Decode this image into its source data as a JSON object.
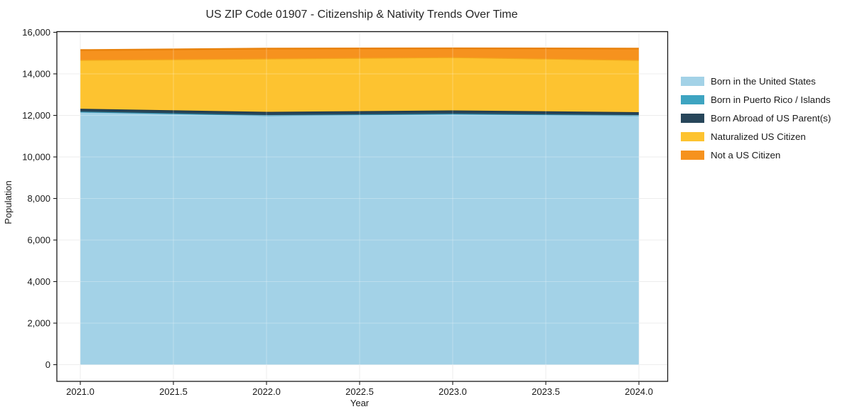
{
  "chart_data": {
    "type": "area",
    "stacked": true,
    "title": "US ZIP Code 01907 - Citizenship & Nativity Trends Over Time",
    "xlabel": "Year",
    "ylabel": "Population",
    "x": [
      2021,
      2022,
      2023,
      2024
    ],
    "series": [
      {
        "name": "Born in the United States",
        "values": [
          12170,
          12000,
          12070,
          12000
        ],
        "color": "#A3D2E7",
        "edge_color": "#8CC3DD"
      },
      {
        "name": "Born in Puerto Rico / Islands",
        "values": [
          15,
          15,
          15,
          15
        ],
        "color": "#3EA4C1",
        "edge_color": "#338FAC"
      },
      {
        "name": "Born Abroad of US Parent(s)",
        "values": [
          135,
          155,
          155,
          140
        ],
        "color": "#27465A",
        "edge_color": "#1B3648"
      },
      {
        "name": "Naturalized US Citizen",
        "values": [
          2350,
          2565,
          2560,
          2510
        ],
        "color": "#FDC330",
        "edge_color": "#F3A71B"
      },
      {
        "name": "Not a US Citizen",
        "values": [
          475,
          480,
          430,
          550
        ],
        "color": "#F6921E",
        "edge_color": "#E8820D"
      }
    ],
    "xlim": [
      2020.87,
      2024.15
    ],
    "ylim": [
      -780,
      16000
    ],
    "grid": true,
    "legend_position": "right",
    "x_ticks": {
      "values": [
        2021.0,
        2021.5,
        2022.0,
        2022.5,
        2023.0,
        2023.5,
        2024.0
      ],
      "labels": [
        "2021.0",
        "2021.5",
        "2022.0",
        "2022.5",
        "2023.0",
        "2023.5",
        "2024.0"
      ]
    },
    "y_ticks": {
      "values": [
        0,
        2000,
        4000,
        6000,
        8000,
        10000,
        12000,
        14000,
        16000
      ],
      "labels": [
        "0",
        "2,000",
        "4,000",
        "6,000",
        "8,000",
        "10,000",
        "12,000",
        "14,000",
        "16,000"
      ]
    }
  },
  "colors": {
    "background": "#ffffff",
    "grid": "#e6e6e6",
    "spine": "#1a1a1a",
    "tick_text": "#1a1a1a",
    "title_text": "#262626"
  }
}
